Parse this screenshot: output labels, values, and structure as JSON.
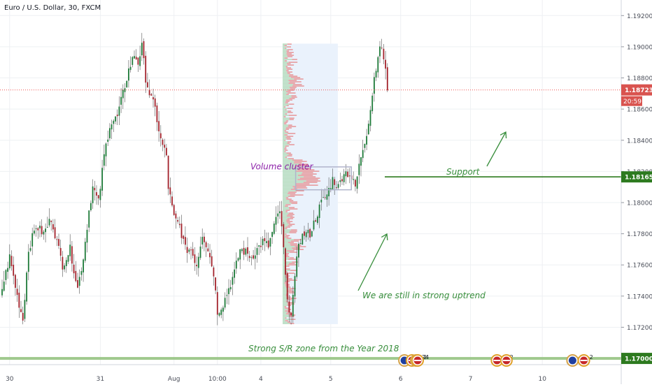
{
  "header": {
    "symbol_title": "Euro / U.S. Dollar, 30, FXCM"
  },
  "colors": {
    "up": "#1e7a39",
    "down": "#a3222b",
    "wick": "#555555",
    "grid": "#eef0f3",
    "current_price_line": "#ef5350",
    "current_price_badge": "#d9534f",
    "support": "#2d7a1f",
    "sr_zone": "#8fbf7a",
    "volume_cluster_text": "#8e24aa",
    "volume_cluster_box": "#b0b4cc",
    "annotation_green": "#388e3c",
    "vp_region": "#eaf2fc",
    "vp_up": "#a5d6a7",
    "vp_down": "#e57373"
  },
  "chart_data": {
    "type": "candlestick",
    "title": "Euro / U.S. Dollar, 30, FXCM",
    "ylim": [
      1.1696,
      1.193
    ],
    "y_ticks": [
      1.172,
      1.174,
      1.176,
      1.178,
      1.18,
      1.182,
      1.184,
      1.186,
      1.188,
      1.19,
      1.192
    ],
    "x_ticks": [
      {
        "index": 4,
        "label": "30"
      },
      {
        "index": 52,
        "label": "31"
      },
      {
        "index": 91,
        "label": "Aug"
      },
      {
        "index": 114,
        "label": "10:00"
      },
      {
        "index": 137,
        "label": "4"
      },
      {
        "index": 174,
        "label": "5"
      },
      {
        "index": 211,
        "label": "6"
      },
      {
        "index": 248,
        "label": "7"
      },
      {
        "index": 286,
        "label": "10"
      }
    ],
    "candle_count": 205,
    "anchors": [
      [
        0,
        1.1745
      ],
      [
        4,
        1.1765
      ],
      [
        8,
        1.174
      ],
      [
        11,
        1.1725
      ],
      [
        14,
        1.177
      ],
      [
        18,
        1.1785
      ],
      [
        22,
        1.178
      ],
      [
        26,
        1.179
      ],
      [
        29,
        1.1775
      ],
      [
        32,
        1.176
      ],
      [
        36,
        1.177
      ],
      [
        40,
        1.1745
      ],
      [
        43,
        1.1765
      ],
      [
        46,
        1.1795
      ],
      [
        48,
        1.181
      ],
      [
        51,
        1.18
      ],
      [
        54,
        1.183
      ],
      [
        57,
        1.185
      ],
      [
        61,
        1.1855
      ],
      [
        64,
        1.187
      ],
      [
        67,
        1.1885
      ],
      [
        70,
        1.1895
      ],
      [
        72,
        1.189
      ],
      [
        74,
        1.19
      ],
      [
        76,
        1.188
      ],
      [
        78,
        1.187
      ],
      [
        81,
        1.186
      ],
      [
        84,
        1.184
      ],
      [
        87,
        1.183
      ],
      [
        88,
        1.181
      ],
      [
        91,
        1.179
      ],
      [
        94,
        1.1785
      ],
      [
        97,
        1.177
      ],
      [
        100,
        1.177
      ],
      [
        103,
        1.176
      ],
      [
        106,
        1.178
      ],
      [
        109,
        1.177
      ],
      [
        112,
        1.1755
      ],
      [
        114,
        1.173
      ],
      [
        117,
        1.1735
      ],
      [
        120,
        1.1745
      ],
      [
        123,
        1.1755
      ],
      [
        126,
        1.177
      ],
      [
        129,
        1.1768
      ],
      [
        132,
        1.1765
      ],
      [
        135,
        1.177
      ],
      [
        138,
        1.1775
      ],
      [
        141,
        1.1772
      ],
      [
        144,
        1.1785
      ],
      [
        147,
        1.1795
      ],
      [
        149,
        1.177
      ],
      [
        151,
        1.1735
      ],
      [
        153,
        1.173
      ],
      [
        155,
        1.175
      ],
      [
        157,
        1.1775
      ],
      [
        160,
        1.178
      ],
      [
        163,
        1.178
      ],
      [
        166,
        1.179
      ],
      [
        169,
        1.18
      ],
      [
        172,
        1.1805
      ],
      [
        175,
        1.1815
      ],
      [
        178,
        1.181
      ],
      [
        181,
        1.182
      ],
      [
        184,
        1.1818
      ],
      [
        187,
        1.181
      ],
      [
        190,
        1.183
      ],
      [
        193,
        1.1845
      ],
      [
        195,
        1.186
      ],
      [
        197,
        1.188
      ],
      [
        199,
        1.1895
      ],
      [
        201,
        1.19
      ],
      [
        203,
        1.1885
      ],
      [
        204,
        1.1872
      ]
    ],
    "current_price": {
      "value": 1.18723,
      "label": "1.18723",
      "countdown": "20:59"
    },
    "support_level": {
      "value": 1.18165,
      "label": "1.18165"
    },
    "sr_zone_level": {
      "value": 1.17,
      "label": "1.17000"
    },
    "annotations": {
      "volume_cluster": "Volume cluster",
      "support": "Support",
      "uptrend": "We are still in strong uptrend",
      "sr_zone": "Strong S/R zone from the Year 2018"
    },
    "volume_profile": {
      "from_index": 150,
      "to_index": 177,
      "price_low": 1.1722,
      "price_high": 1.1902
    },
    "volume_cluster_box": {
      "from_index": 148,
      "to_index": 176,
      "price_low": 1.181,
      "price_high": 1.1822
    },
    "events": [
      {
        "index": 213,
        "label": "",
        "flags": [
          "eu"
        ]
      },
      {
        "index": 217,
        "label": "24",
        "flags": [
          "us",
          "eu"
        ]
      },
      {
        "index": 220,
        "label": "2",
        "flags": [
          "us"
        ]
      },
      {
        "index": 262,
        "label": "102",
        "flags": [
          "us"
        ]
      },
      {
        "index": 267,
        "label": "",
        "flags": [
          "us"
        ]
      },
      {
        "index": 302,
        "label": "",
        "flags": [
          "eu"
        ]
      },
      {
        "index": 308,
        "label": "2",
        "flags": [
          "us"
        ]
      }
    ]
  }
}
